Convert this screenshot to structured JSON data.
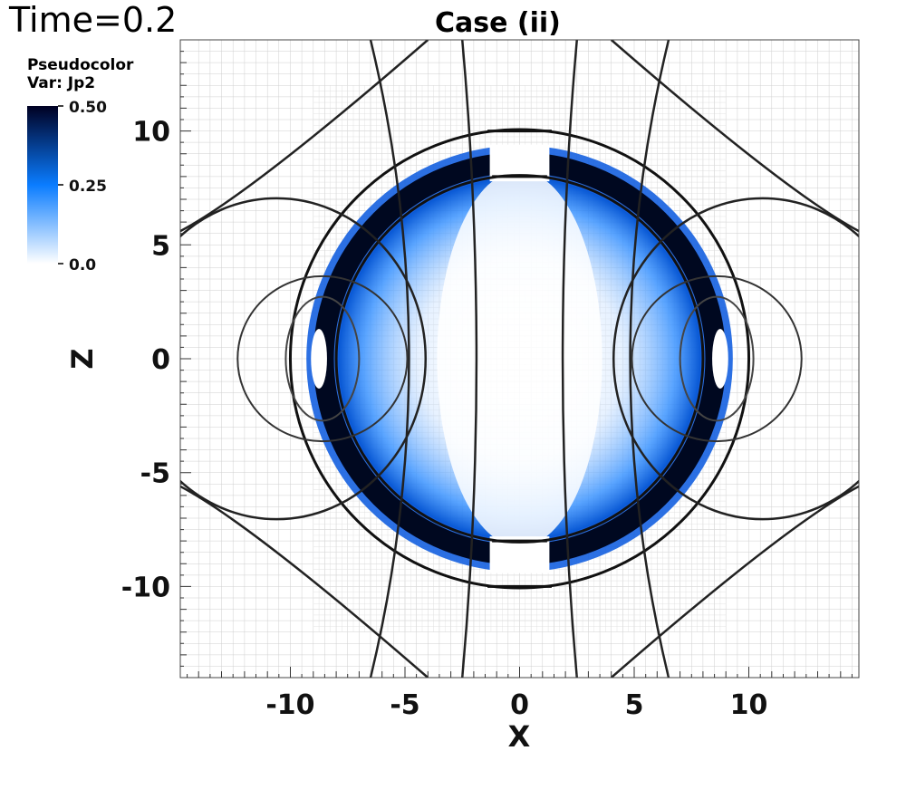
{
  "header": {
    "time_label": "Time=0.2"
  },
  "legend": {
    "line1": "Pseudocolor",
    "line2": "Var: Jp2",
    "max_label": "0.50",
    "mid_label": "0.25",
    "min_label": "0.0",
    "colors": [
      "#ffffff",
      "#0a7cff",
      "#000033"
    ]
  },
  "chart_data": {
    "type": "heatmap",
    "title": "Case (ii)",
    "xlabel": "X",
    "ylabel": "Z",
    "xlim": [
      -14.8,
      14.8
    ],
    "ylim": [
      -14,
      14
    ],
    "xticks": [
      -10,
      -5,
      0,
      5,
      10
    ],
    "yticks": [
      -10,
      -5,
      0,
      5,
      10
    ],
    "xtick_labels": [
      "-10",
      "-5",
      "0",
      "5",
      "10"
    ],
    "ytick_labels": [
      "-10",
      "-5",
      "0",
      "5",
      "10"
    ],
    "colorbar": {
      "variable": "Jp2",
      "min": 0.0,
      "max": 0.5,
      "ticks": [
        0.0,
        0.25,
        0.5
      ]
    },
    "current_ring": {
      "inner_radius": 8.0,
      "outer_radius": 10.0,
      "peak_value": 0.5
    },
    "grid": true
  }
}
